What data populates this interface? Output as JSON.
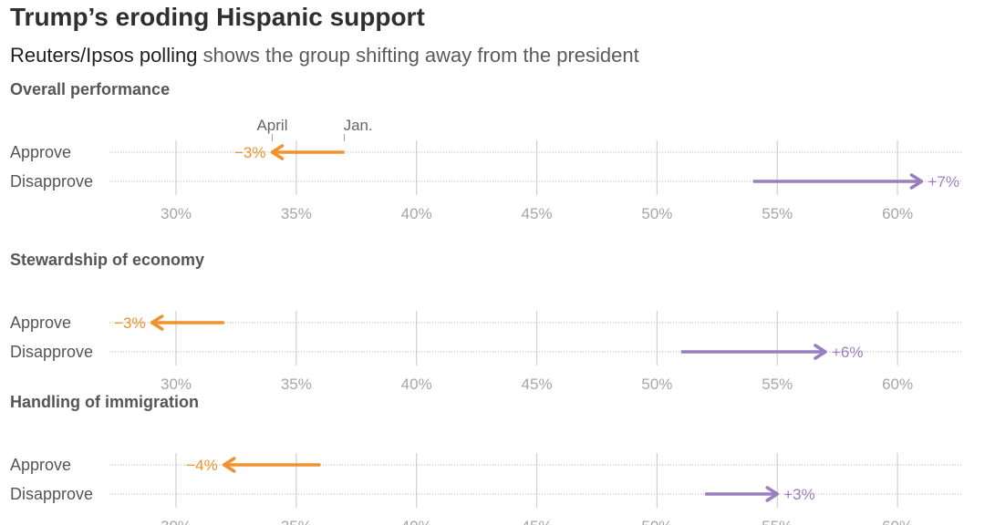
{
  "chart_data": {
    "type": "arrow-dot",
    "title": "Trump’s eroding Hispanic support",
    "subtitle_em": "Reuters/Ipsos polling",
    "subtitle_rest": " shows the group shifting away from the president",
    "annotation": {
      "start_label": "Jan.",
      "end_label": "April"
    },
    "x_ticks": [
      30,
      35,
      40,
      45,
      50,
      55,
      60
    ],
    "x_tick_labels": [
      "30%",
      "35%",
      "40%",
      "45%",
      "50%",
      "55%",
      "60%"
    ],
    "xlim": [
      27.5,
      62.5
    ],
    "colors": {
      "approve": "#f0922e",
      "disapprove": "#9a7fbf"
    },
    "panels": [
      {
        "title": "Overall performance",
        "rows": [
          {
            "label": "Approve",
            "series": "approve",
            "jan": 37,
            "april": 34,
            "change_label": "−3%"
          },
          {
            "label": "Disapprove",
            "series": "disapprove",
            "jan": 54,
            "april": 61,
            "change_label": "+7%"
          }
        ]
      },
      {
        "title": "Stewardship of economy",
        "rows": [
          {
            "label": "Approve",
            "series": "approve",
            "jan": 32,
            "april": 29,
            "change_label": "−3%"
          },
          {
            "label": "Disapprove",
            "series": "disapprove",
            "jan": 51,
            "april": 57,
            "change_label": "+6%"
          }
        ]
      },
      {
        "title": "Handling of immigration",
        "rows": [
          {
            "label": "Approve",
            "series": "approve",
            "jan": 36,
            "april": 32,
            "change_label": "−4%"
          },
          {
            "label": "Disapprove",
            "series": "disapprove",
            "jan": 52,
            "april": 55,
            "change_label": "+3%"
          }
        ]
      }
    ]
  }
}
